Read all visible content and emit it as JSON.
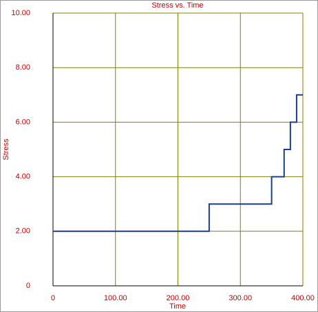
{
  "chart_data": {
    "type": "line",
    "title": "Stress vs. Time",
    "x_label": "Time",
    "y_label": "Stress",
    "x": [
      0,
      250,
      250,
      350,
      350,
      370,
      370,
      380,
      380,
      390,
      390,
      400
    ],
    "series": [
      {
        "color": "#1c3c8c",
        "values": [
          2,
          2,
          3,
          3,
          4,
          4,
          5,
          5,
          6,
          6,
          7,
          7
        ]
      }
    ],
    "xlim": [
      0,
      400
    ],
    "xticks": [
      0,
      {
        "value": 100,
        "label": "100.00"
      },
      {
        "value": 200,
        "label": "200.00"
      },
      {
        "value": 300,
        "label": "300.00"
      },
      {
        "value": 400,
        "label": "400.00"
      }
    ],
    "ylim": [
      0,
      10
    ],
    "yticks": [
      0,
      {
        "value": 2,
        "label": "2.00"
      },
      {
        "value": 4,
        "label": "4.00"
      },
      {
        "value": 6,
        "label": "6.00"
      },
      {
        "value": 8,
        "label": "8.00"
      },
      {
        "value": 10,
        "label": "10.00"
      }
    ],
    "grid": true,
    "grid_color": "#808000"
  }
}
